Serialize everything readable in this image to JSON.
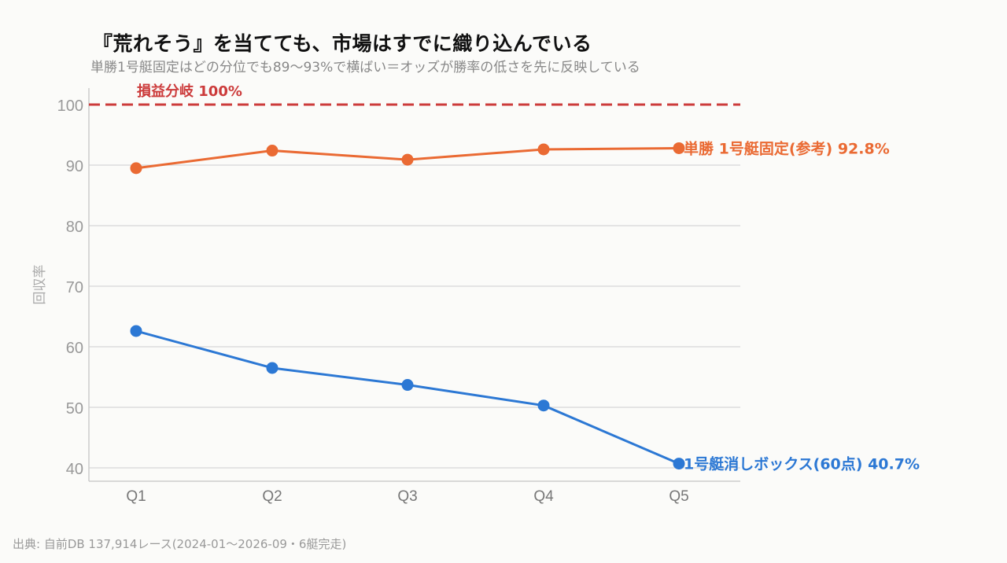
{
  "title": "『荒れそう』を当てても、市場はすでに織り込んでいる",
  "subtitle": "単勝1号艇固定はどの分位でも89〜93%で横ばい＝オッズが勝率の低さを先に反映している",
  "source": "出典: 自前DB 137,914レース(2024-01〜2026-09・6艇完走)",
  "chart_data": {
    "type": "line",
    "categories": [
      "Q1",
      "Q2",
      "Q3",
      "Q4",
      "Q5"
    ],
    "ylabel": "回収率",
    "xlabel": "",
    "ylim": [
      38,
      102
    ],
    "yticks": [
      40,
      50,
      60,
      70,
      80,
      90,
      100
    ],
    "grid": true,
    "reference_line": {
      "value": 100,
      "label": "損益分岐 100%",
      "color": "#cc3b3b"
    },
    "series": [
      {
        "name": "単勝 1号艇固定(参考)",
        "end_label": "単勝 1号艇固定(参考) 92.8%",
        "color": "#ea6a33",
        "values": [
          89.5,
          92.4,
          90.9,
          92.6,
          92.8
        ]
      },
      {
        "name": "1号艇消しボックス(60点)",
        "end_label": "1号艇消しボックス(60点) 40.7%",
        "color": "#2c78d4",
        "values": [
          62.6,
          56.5,
          53.7,
          50.3,
          40.7
        ]
      }
    ]
  }
}
